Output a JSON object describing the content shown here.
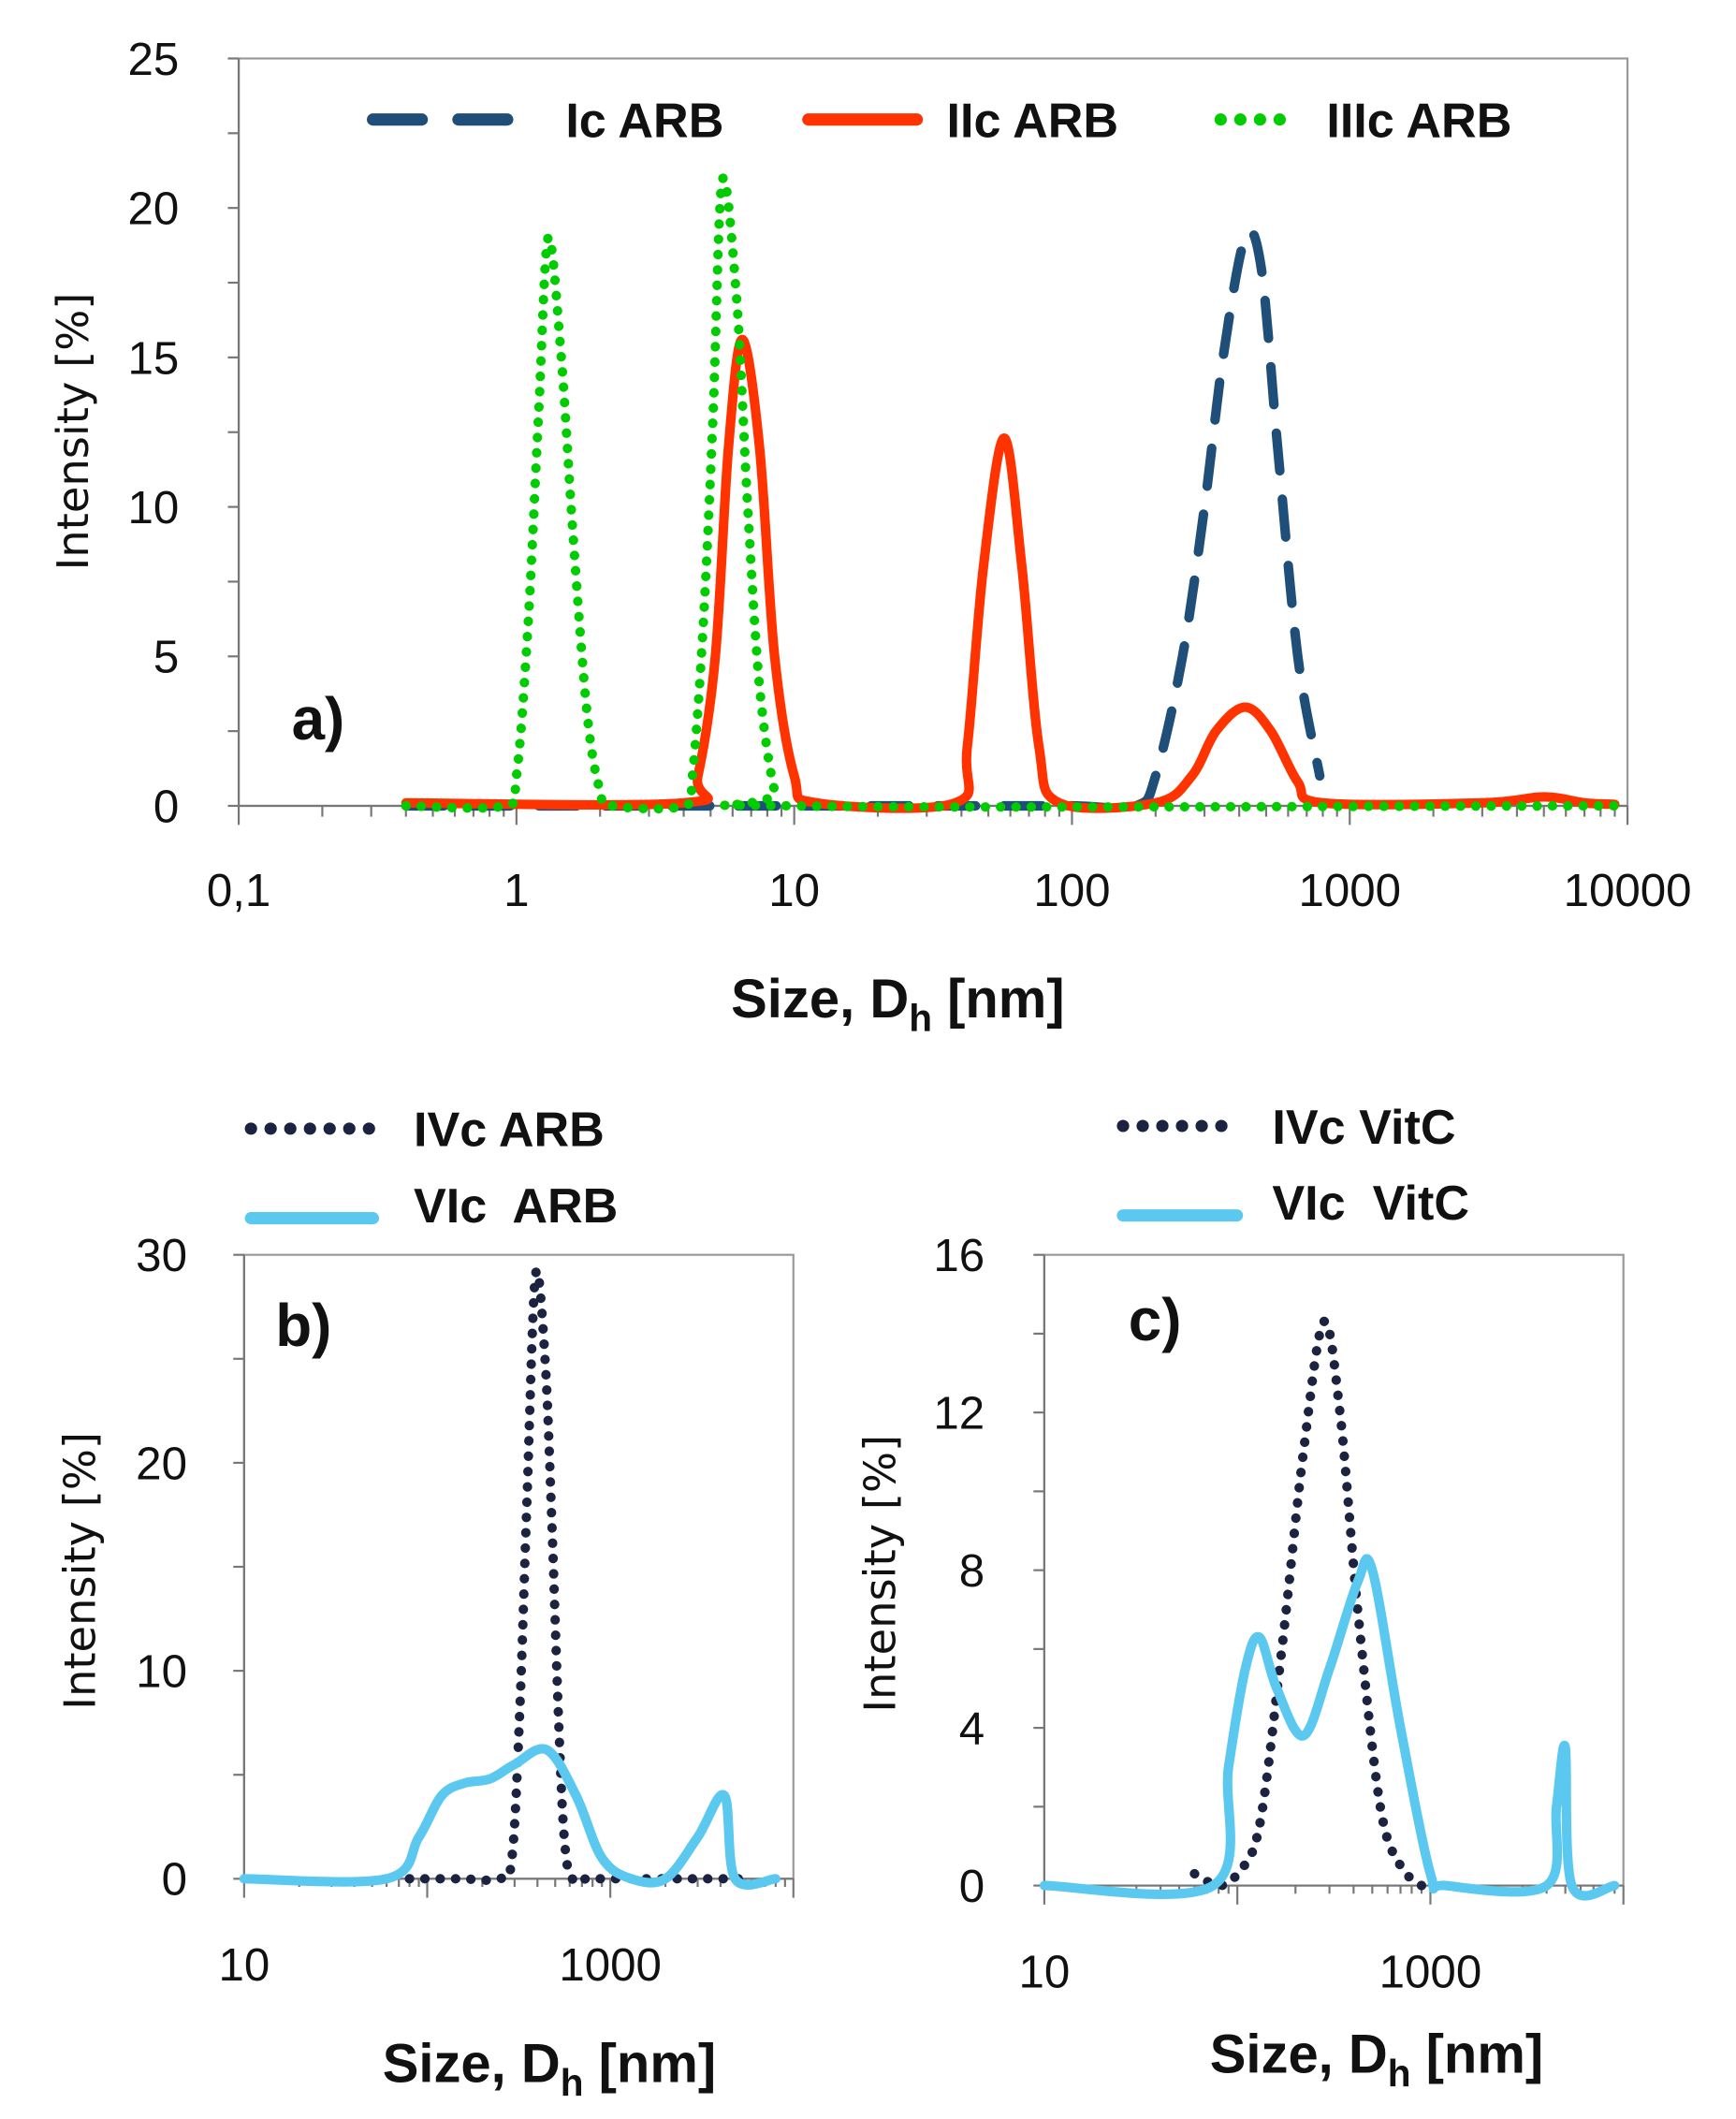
{
  "chart_data": [
    {
      "id": "a",
      "type": "line",
      "panel_label": "a)",
      "xscale": "log",
      "xlim": [
        0.1,
        10000
      ],
      "ylim": [
        0,
        25
      ],
      "xticks": [
        0.1,
        1,
        10,
        100,
        1000,
        10000
      ],
      "xtick_labels": [
        "0,1",
        "1",
        "10",
        "100",
        "1000",
        "10000"
      ],
      "yticks": [
        0,
        5,
        10,
        15,
        20,
        25
      ],
      "ytick_labels": [
        "0",
        "5",
        "10",
        "15",
        "20",
        "25"
      ],
      "yminor_step": 2.5,
      "xlabel": {
        "main": "Size, D",
        "sub": "h",
        "tail": " [nm]"
      },
      "ylabel": "Intensity [%]",
      "legend_position": "top",
      "series": [
        {
          "name": "Ic ARB",
          "style": "dash",
          "color": "#1f4e79",
          "points": [
            [
              0.4,
              0
            ],
            [
              5,
              0
            ],
            [
              8,
              0
            ],
            [
              50,
              0
            ],
            [
              100,
              0
            ],
            [
              170,
              0
            ],
            [
              200,
              1
            ],
            [
              250,
              5
            ],
            [
              300,
              10
            ],
            [
              350,
              15
            ],
            [
              420,
              19
            ],
            [
              480,
              18
            ],
            [
              550,
              12
            ],
            [
              650,
              5
            ],
            [
              780,
              1
            ]
          ]
        },
        {
          "name": "IIc ARB",
          "style": "solid",
          "color": "#ff3300",
          "points": [
            [
              0.4,
              0.1
            ],
            [
              4,
              0.1
            ],
            [
              4.5,
              1
            ],
            [
              5.2,
              5
            ],
            [
              5.8,
              12
            ],
            [
              6.5,
              15.6
            ],
            [
              7.5,
              12
            ],
            [
              8.5,
              5
            ],
            [
              10,
              1
            ],
            [
              12,
              0.1
            ],
            [
              38,
              0.1
            ],
            [
              42,
              2
            ],
            [
              48,
              8
            ],
            [
              57,
              12.3
            ],
            [
              66,
              8
            ],
            [
              76,
              2
            ],
            [
              90,
              0.1
            ],
            [
              200,
              0.1
            ],
            [
              270,
              1
            ],
            [
              330,
              2.5
            ],
            [
              420,
              3.3
            ],
            [
              520,
              2.5
            ],
            [
              650,
              0.8
            ],
            [
              800,
              0.1
            ],
            [
              3000,
              0.1
            ],
            [
              5000,
              0.3
            ],
            [
              7000,
              0.1
            ],
            [
              9000,
              0.05
            ]
          ]
        },
        {
          "name": "IIIc ARB",
          "style": "dot",
          "color": "#00cc00",
          "points": [
            [
              0.4,
              0
            ],
            [
              0.9,
              0
            ],
            [
              1,
              1
            ],
            [
              1.1,
              6
            ],
            [
              1.2,
              13
            ],
            [
              1.3,
              19
            ],
            [
              1.45,
              15
            ],
            [
              1.6,
              9
            ],
            [
              1.8,
              3
            ],
            [
              2,
              0.5
            ],
            [
              2.2,
              0
            ],
            [
              4,
              0
            ],
            [
              4.3,
              1
            ],
            [
              4.7,
              6
            ],
            [
              5.1,
              13
            ],
            [
              5.5,
              20.9
            ],
            [
              6.2,
              17
            ],
            [
              6.8,
              10
            ],
            [
              7.5,
              4
            ],
            [
              8.5,
              0.5
            ],
            [
              9.5,
              0
            ],
            [
              9000,
              0
            ]
          ]
        }
      ]
    },
    {
      "id": "b",
      "type": "line",
      "panel_label": "b)",
      "xscale": "log",
      "xlim": [
        10,
        10000
      ],
      "ylim": [
        0,
        30
      ],
      "xticks": [
        10,
        1000
      ],
      "xtick_labels": [
        "10",
        "1000"
      ],
      "yticks": [
        0,
        10,
        20,
        30
      ],
      "ytick_labels": [
        "0",
        "10",
        "20",
        "30"
      ],
      "yminor_step": 5,
      "xlabel": {
        "main": "Size, D",
        "sub": "h",
        "tail": " [nm]"
      },
      "ylabel": "Intensity [%]",
      "legend_position": "above",
      "series": [
        {
          "name": "IVc ARB",
          "style": "dot",
          "color": "#1c2340",
          "points": [
            [
              80,
              0
            ],
            [
              150,
              0
            ],
            [
              250,
              0
            ],
            [
              290,
              1
            ],
            [
              320,
              8
            ],
            [
              350,
              18
            ],
            [
              390,
              29
            ],
            [
              440,
              25
            ],
            [
              480,
              17
            ],
            [
              520,
              8
            ],
            [
              560,
              2
            ],
            [
              620,
              0
            ],
            [
              800,
              0
            ],
            [
              5000,
              0
            ]
          ]
        },
        {
          "name": "VIc  ARB",
          "style": "solid",
          "color": "#5bc8f0",
          "points": [
            [
              10,
              0
            ],
            [
              60,
              0
            ],
            [
              90,
              2
            ],
            [
              120,
              4
            ],
            [
              160,
              4.6
            ],
            [
              220,
              4.8
            ],
            [
              300,
              5.5
            ],
            [
              450,
              6.2
            ],
            [
              650,
              4
            ],
            [
              900,
              1
            ],
            [
              1300,
              0
            ],
            [
              2000,
              0
            ],
            [
              3000,
              2
            ],
            [
              4200,
              4
            ],
            [
              4800,
              0
            ],
            [
              8000,
              0
            ]
          ]
        }
      ]
    },
    {
      "id": "c",
      "type": "line",
      "panel_label": "c)",
      "xscale": "log",
      "xlim": [
        10,
        10000
      ],
      "ylim": [
        0,
        16
      ],
      "xticks": [
        10,
        1000
      ],
      "xtick_labels": [
        "10",
        "1000"
      ],
      "yticks": [
        0,
        4,
        8,
        12,
        16
      ],
      "ytick_labels": [
        "0",
        "4",
        "8",
        "12",
        "16"
      ],
      "yminor_step": 2,
      "xlabel": {
        "main": "Size, D",
        "sub": "h",
        "tail": " [nm]"
      },
      "ylabel": "Intensity [%]",
      "legend_position": "above",
      "series": [
        {
          "name": "IVc VitC",
          "style": "dot",
          "color": "#1c2340",
          "points": [
            [
              60,
              0.3
            ],
            [
              80,
              0
            ],
            [
              100,
              0.3
            ],
            [
              130,
              1.5
            ],
            [
              170,
              6
            ],
            [
              220,
              11
            ],
            [
              280,
              14.3
            ],
            [
              340,
              12
            ],
            [
              420,
              7
            ],
            [
              550,
              2
            ],
            [
              700,
              0.5
            ],
            [
              900,
              0
            ]
          ]
        },
        {
          "name": "VIc  VitC",
          "style": "solid",
          "color": "#5bc8f0",
          "points": [
            [
              10,
              0
            ],
            [
              75,
              0
            ],
            [
              90,
              3
            ],
            [
              110,
              5.5
            ],
            [
              130,
              6.3
            ],
            [
              160,
              5
            ],
            [
              220,
              3.8
            ],
            [
              300,
              5.5
            ],
            [
              420,
              7.7
            ],
            [
              500,
              8
            ],
            [
              700,
              4
            ],
            [
              1000,
              0.3
            ],
            [
              1200,
              0
            ],
            [
              4000,
              0
            ],
            [
              4500,
              2
            ],
            [
              5000,
              3.5
            ],
            [
              5400,
              0
            ],
            [
              9000,
              0
            ]
          ]
        }
      ]
    }
  ]
}
